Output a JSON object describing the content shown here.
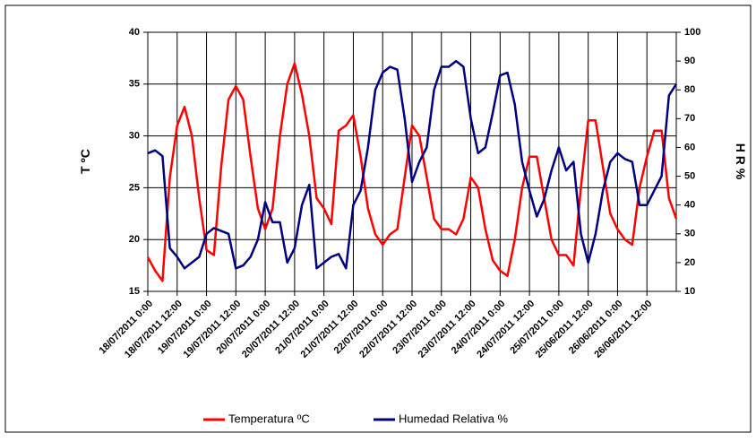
{
  "chart_data": {
    "type": "line",
    "ylabel": "T ºC",
    "y2label": "H R %",
    "categories": [
      "18/07/2011 0:00",
      null,
      null,
      null,
      "18/07/2011 12:00",
      null,
      null,
      null,
      "19/07/2011 0:00",
      null,
      null,
      null,
      "19/07/2011 12:00",
      null,
      null,
      null,
      "20/07/2011 0:00",
      null,
      null,
      null,
      "20/07/2011 12:00",
      null,
      null,
      null,
      "21/07/2011 0:00",
      null,
      null,
      null,
      "21/07/2011 12:00",
      null,
      null,
      null,
      "22/07/2011 0:00",
      null,
      null,
      null,
      "22/07/2011 12:00",
      null,
      null,
      null,
      "23/07/2011 0:00",
      null,
      null,
      null,
      "23/07/2011 12:00",
      null,
      null,
      null,
      "24/07/2011 0:00",
      null,
      null,
      null,
      "24/07/2011 12:00",
      null,
      null,
      null,
      "25/07/2011 0:00",
      null,
      null,
      null,
      "25/06/2011 12:00",
      null,
      null,
      null,
      "26/06/2011 0:00",
      null,
      null,
      null,
      "26/06/2011 12:00",
      null,
      null,
      null,
      null
    ],
    "series": [
      {
        "name": "Temperatura ºC",
        "color": "#ff0000",
        "values": [
          18.3,
          17,
          16,
          26,
          31,
          32.8,
          30,
          24,
          19,
          18.5,
          27,
          33.5,
          34.8,
          33.5,
          28,
          23,
          21,
          23,
          30,
          35,
          37,
          34,
          30,
          24,
          23,
          21.5,
          30.5,
          31,
          32,
          28,
          23,
          20.5,
          19.5,
          20.5,
          21,
          26,
          31,
          30,
          26,
          22,
          21,
          21,
          20.5,
          22,
          26,
          25,
          21,
          18,
          17,
          16.5,
          20,
          25,
          28,
          28,
          24,
          20,
          18.5,
          18.5,
          17.5,
          25,
          31.5,
          31.5,
          27,
          22.5,
          21,
          20,
          19.5,
          25,
          28,
          30.5,
          30.5,
          24,
          22
        ]
      },
      {
        "name": "Humedad Relativa %",
        "color": "#000080",
        "axis": "y2",
        "values": [
          58,
          59,
          57,
          25,
          22,
          18,
          20,
          22,
          30,
          32,
          31,
          30,
          18,
          19,
          22,
          28,
          41,
          34,
          34,
          20,
          25,
          40,
          47,
          18,
          20,
          22,
          23,
          18,
          40,
          45,
          60,
          80,
          86,
          88,
          87,
          70,
          48,
          55,
          60,
          80,
          88,
          88,
          90,
          88,
          70,
          58,
          60,
          72,
          85,
          86,
          75,
          55,
          45,
          36,
          42,
          52,
          60,
          52,
          55,
          30,
          20,
          30,
          45,
          55,
          58,
          56,
          55,
          40,
          40,
          45,
          50,
          78,
          82
        ]
      }
    ],
    "ylim": [
      15,
      40
    ],
    "yticks": [
      15,
      20,
      25,
      30,
      35,
      40
    ],
    "y2lim": [
      10,
      100
    ],
    "y2ticks": [
      10,
      20,
      30,
      40,
      50,
      60,
      70,
      80,
      90,
      100
    ],
    "grid": true,
    "legend": "bottom"
  }
}
